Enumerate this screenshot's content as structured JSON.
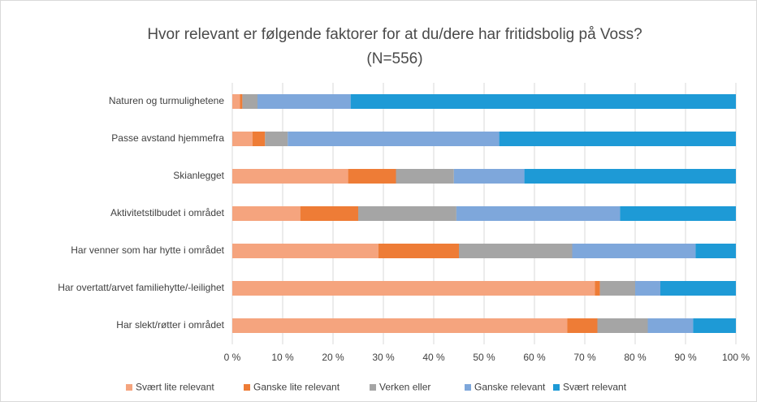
{
  "chart_data": {
    "type": "stacked_bar_horizontal",
    "title": "Hvor relevant er følgende faktorer for at du/dere har fritidsbolig på Voss?",
    "subtitle": "(N=556)",
    "categories": [
      "Naturen og turmulighetene",
      "Passe avstand hjemmefra",
      "Skianlegget",
      "Aktivitetstilbudet i området",
      "Har venner som har hytte i området",
      "Har overtatt/arvet familiehytte/-leilighet",
      "Har slekt/røtter i området"
    ],
    "series": [
      {
        "name": "Svært lite relevant",
        "color": "#f5a47e",
        "values": [
          1.5,
          4,
          23,
          13.5,
          29,
          72,
          66.5
        ]
      },
      {
        "name": "Ganske lite relevant",
        "color": "#ee7c36",
        "values": [
          0.5,
          2.5,
          9.5,
          11.5,
          16,
          1,
          6
        ]
      },
      {
        "name": "Verken eller",
        "color": "#a5a5a5",
        "values": [
          3,
          4.5,
          11.5,
          19.5,
          22.5,
          7,
          10
        ]
      },
      {
        "name": "Ganske relevant",
        "color": "#7ea7db",
        "values": [
          18.5,
          42,
          14,
          32.5,
          24.5,
          5,
          9
        ]
      },
      {
        "name": "Svært relevant",
        "color": "#1e9ad6",
        "values": [
          76.5,
          47,
          42,
          23,
          8,
          15,
          8.5
        ]
      }
    ],
    "xlim": [
      0,
      100
    ],
    "xticks": [
      {
        "value": 0,
        "label": "0 %"
      },
      {
        "value": 10,
        "label": "10 %"
      },
      {
        "value": 20,
        "label": "20 %"
      },
      {
        "value": 30,
        "label": "30 %"
      },
      {
        "value": 40,
        "label": "40 %"
      },
      {
        "value": 50,
        "label": "50 %"
      },
      {
        "value": 60,
        "label": "60 %"
      },
      {
        "value": 70,
        "label": "70 %"
      },
      {
        "value": 80,
        "label": "80 %"
      },
      {
        "value": 90,
        "label": "90 %"
      },
      {
        "value": 100,
        "label": "100 %"
      }
    ],
    "grid": true
  }
}
